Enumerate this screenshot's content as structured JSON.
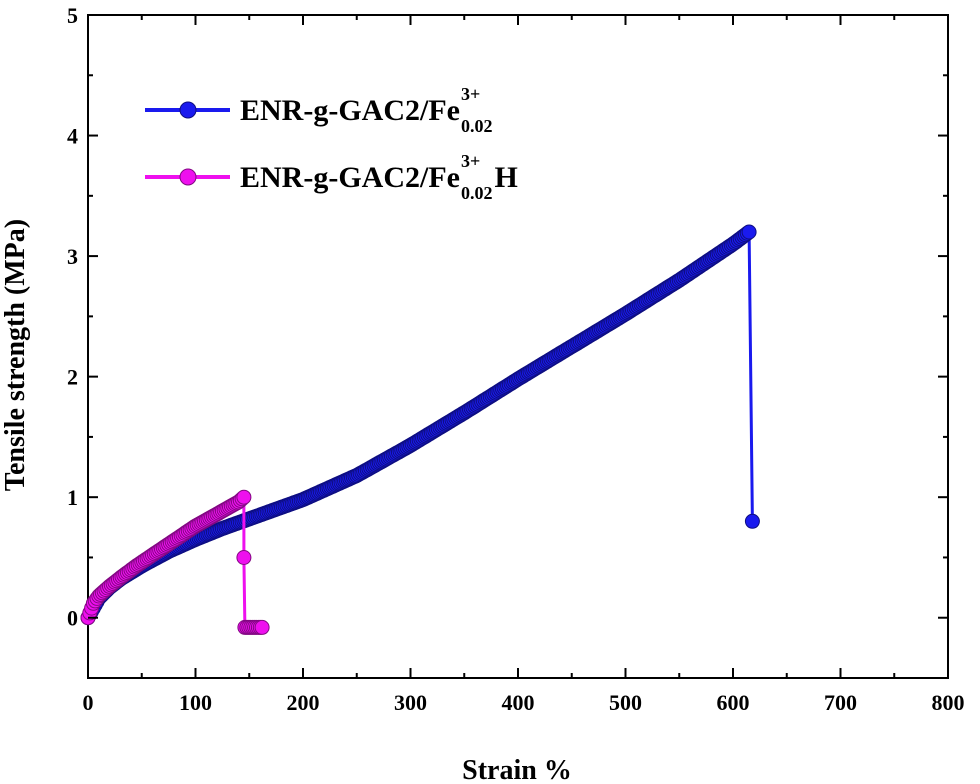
{
  "chart_data": {
    "type": "line",
    "xlabel": "Strain %",
    "ylabel": "Tensile strength (MPa)",
    "xlim": [
      0,
      800
    ],
    "ylim": [
      -0.5,
      5
    ],
    "xticks": [
      0,
      100,
      200,
      300,
      400,
      500,
      600,
      700,
      800
    ],
    "yticks": [
      0,
      1,
      2,
      3,
      4,
      5
    ],
    "grid": false,
    "legend_position": "top-left",
    "series": [
      {
        "name": "ENR-g-GAC2/Fe0.02 3+",
        "legend": {
          "base": "ENR-g-GAC2/Fe",
          "superscript": "3+",
          "subscript": "0.02",
          "suffix": ""
        },
        "color": "#1a1aee",
        "points": [
          [
            0,
            0
          ],
          [
            10,
            0.16
          ],
          [
            20,
            0.25
          ],
          [
            30,
            0.32
          ],
          [
            50,
            0.43
          ],
          [
            75,
            0.55
          ],
          [
            100,
            0.65
          ],
          [
            125,
            0.74
          ],
          [
            150,
            0.82
          ],
          [
            175,
            0.9
          ],
          [
            200,
            0.98
          ],
          [
            250,
            1.18
          ],
          [
            300,
            1.43
          ],
          [
            350,
            1.7
          ],
          [
            400,
            1.98
          ],
          [
            450,
            2.25
          ],
          [
            500,
            2.52
          ],
          [
            550,
            2.8
          ],
          [
            600,
            3.1
          ],
          [
            615,
            3.2
          ],
          [
            618,
            0.8
          ]
        ]
      },
      {
        "name": "ENR-g-GAC2/Fe0.02 3+ H",
        "legend": {
          "base": "ENR-g-GAC2/Fe",
          "superscript": "3+",
          "subscript": "0.02",
          "suffix": "H"
        },
        "color": "#ee10ee",
        "points": [
          [
            0,
            0
          ],
          [
            5,
            0.12
          ],
          [
            10,
            0.18
          ],
          [
            20,
            0.26
          ],
          [
            30,
            0.33
          ],
          [
            45,
            0.43
          ],
          [
            60,
            0.52
          ],
          [
            80,
            0.64
          ],
          [
            100,
            0.76
          ],
          [
            120,
            0.86
          ],
          [
            140,
            0.96
          ],
          [
            145,
            1.0
          ],
          [
            145,
            0.5
          ],
          [
            146,
            -0.08
          ],
          [
            155,
            -0.08
          ],
          [
            162,
            -0.08
          ]
        ]
      }
    ]
  }
}
